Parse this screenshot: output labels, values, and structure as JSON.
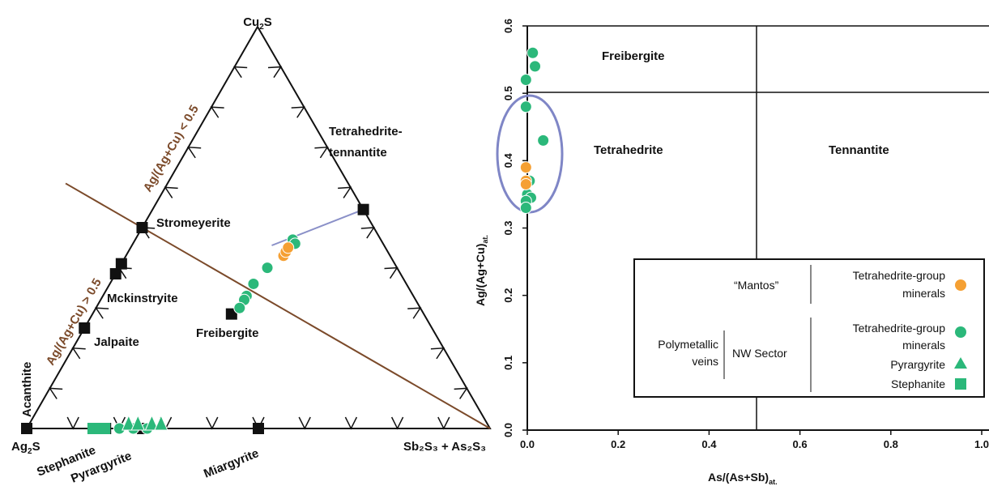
{
  "colors": {
    "orange": "#f5a033",
    "green": "#2bb87a",
    "brown": "#7b4a2a",
    "blue_line": "#8a90c8",
    "ellipse": "#7f86c6",
    "black": "#111111"
  },
  "chart_data": [
    {
      "type": "scatter",
      "subtype": "ternary",
      "vertices": {
        "top": "Cu2S",
        "bottom_left": "Ag2S",
        "bottom_right": "Sb2S3 + As2S3"
      },
      "vertex_labels": {
        "top": {
          "base": "Cu",
          "sub": "2",
          "tail": "S"
        },
        "bottom_left": {
          "base": "Ag",
          "sub": "2",
          "tail": "S"
        },
        "bottom_right": "Sb₂S₃ + As₂S₃"
      },
      "side_labels": {
        "upper": "Ag/(Ag+Cu) < 0.5",
        "lower": "Ag/(Ag+Cu) > 0.5",
        "left_side": "Acanthite"
      },
      "minerals": [
        {
          "name": "Tetrahedrite-\ntennantite",
          "label1": "Tetrahedrite-",
          "label2": "tennantite",
          "cu2s": 0.545,
          "sb": 0.455
        },
        {
          "name": "Stromeyerite",
          "cu2s": 0.5,
          "sb": 0.0
        },
        {
          "name": "Mckinstryite",
          "cu2s": 0.385,
          "sb": 0.0
        },
        {
          "name": "Jalpaite",
          "cu2s": 0.25,
          "sb": 0.0
        },
        {
          "name": "Freibergite",
          "cu2s": 0.285,
          "sb": 0.3
        },
        {
          "name": "Stephanite",
          "cu2s": 0.0,
          "sb": 0.17
        },
        {
          "name": "Pyrargyrite",
          "cu2s": 0.0,
          "sb": 0.25
        },
        {
          "name": "Miargyrite",
          "cu2s": 0.0,
          "sb": 0.5
        }
      ],
      "points_orange": [
        {
          "cu2s": 0.43,
          "sb": 0.34
        },
        {
          "cu2s": 0.44,
          "sb": 0.34
        },
        {
          "cu2s": 0.45,
          "sb": 0.34
        }
      ],
      "points_green": [
        {
          "cu2s": 0.47,
          "sb": 0.34
        },
        {
          "cu2s": 0.46,
          "sb": 0.35
        },
        {
          "cu2s": 0.4,
          "sb": 0.32
        },
        {
          "cu2s": 0.36,
          "sb": 0.31
        },
        {
          "cu2s": 0.33,
          "sb": 0.31
        },
        {
          "cu2s": 0.32,
          "sb": 0.31
        },
        {
          "cu2s": 0.3,
          "sb": 0.31
        }
      ],
      "bottom_green_squares": [
        0.145,
        0.16,
        0.17
      ],
      "bottom_green_triangles": [
        0.22,
        0.24,
        0.27,
        0.29
      ],
      "bottom_green_circles": [
        0.2,
        0.23,
        0.26
      ]
    },
    {
      "type": "scatter",
      "xlabel": "As/(As+Sb)",
      "xlabel_sub": "at.",
      "ylabel": "Ag/(Ag+Cu)",
      "ylabel_sub": "at.",
      "xlim": [
        -0.02,
        1.0
      ],
      "ylim": [
        0.0,
        0.6
      ],
      "xticks": [
        "0.0",
        "0.2",
        "0.4",
        "0.6",
        "0.8",
        "1.0"
      ],
      "yticks": [
        "0.0",
        "0.1",
        "0.2",
        "0.3",
        "0.4",
        "0.5",
        "0.6"
      ],
      "field_labels": [
        "Freibergite",
        "Tetrahedrite",
        "Tennantite"
      ],
      "orange_points": [
        {
          "x": -0.003,
          "y": 0.39
        },
        {
          "x": -0.003,
          "y": 0.37
        },
        {
          "x": -0.003,
          "y": 0.365
        }
      ],
      "green_points": [
        {
          "x": 0.012,
          "y": 0.56
        },
        {
          "x": 0.017,
          "y": 0.54
        },
        {
          "x": -0.003,
          "y": 0.52
        },
        {
          "x": -0.003,
          "y": 0.48
        },
        {
          "x": 0.035,
          "y": 0.43
        },
        {
          "x": 0.005,
          "y": 0.37
        },
        {
          "x": 0.0,
          "y": 0.35
        },
        {
          "x": 0.008,
          "y": 0.345
        },
        {
          "x": -0.003,
          "y": 0.34
        },
        {
          "x": -0.003,
          "y": 0.33
        }
      ],
      "legend": {
        "mantos": "“Mantos”",
        "tg1": "Tetrahedrite-group",
        "tg1b": "minerals",
        "poly1": "Polymetallic",
        "poly2": "veins",
        "nw": "NW Sector",
        "tg2": "Tetrahedrite-group",
        "tg2b": "minerals",
        "pyrargyrite": "Pyrargyrite",
        "stephanite": "Stephanite"
      }
    }
  ]
}
